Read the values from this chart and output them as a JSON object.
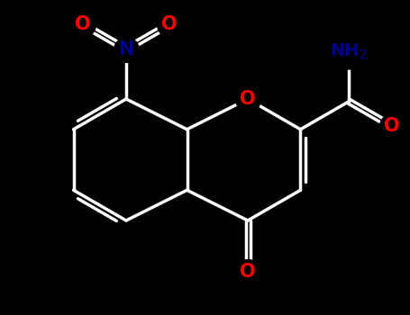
{
  "background_color": "#000000",
  "bond_color": "#ffffff",
  "red": "#ff0000",
  "blue": "#00008b",
  "bond_lw": 2.5,
  "font_size": 14,
  "figsize": [
    4.55,
    3.5
  ],
  "dpi": 100,
  "xlim": [
    0,
    9.1
  ],
  "ylim": [
    0,
    7.0
  ]
}
